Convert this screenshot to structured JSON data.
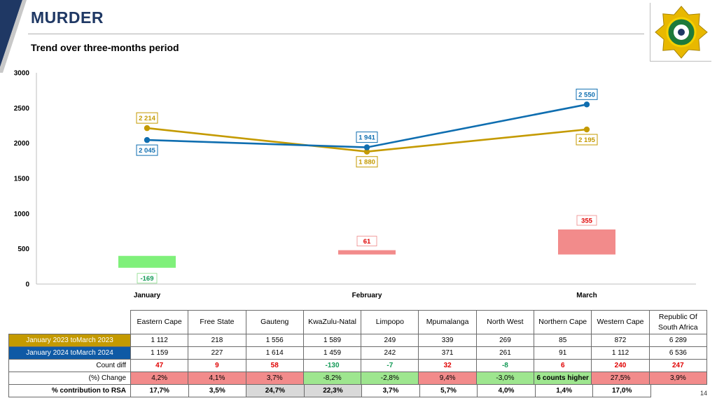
{
  "header": {
    "title": "MURDER",
    "subtitle": "Trend over three-months period"
  },
  "page_number": "14",
  "colors": {
    "series_2023": "#c49a00",
    "series_2024": "#0f6eb0",
    "diff_positive": "#f28b8b",
    "diff_negative": "#7ff07a"
  },
  "chart_data": {
    "type": "line",
    "title": "",
    "xlabel": "",
    "ylabel": "",
    "ylim": [
      0,
      3000
    ],
    "yticks": [
      0,
      500,
      1000,
      1500,
      2000,
      2500,
      3000
    ],
    "grid": false,
    "categories": [
      "January",
      "February",
      "March"
    ],
    "series": [
      {
        "name": "January 2023 toMarch 2023",
        "values": [
          2214,
          1880,
          2195
        ],
        "labels": [
          "2 214",
          "1 880",
          "2 195"
        ],
        "color": "#c49a00"
      },
      {
        "name": "January 2024 toMarch 2024",
        "values": [
          2045,
          1941,
          2550
        ],
        "labels": [
          "2 045",
          "1 941",
          "2 550"
        ],
        "color": "#0f6eb0"
      }
    ],
    "difference": {
      "values": [
        -169,
        61,
        355
      ],
      "labels": [
        "-169",
        "61",
        "355"
      ]
    }
  },
  "table": {
    "columns": [
      "Eastern Cape",
      "Free State",
      "Gauteng",
      "KwaZulu-Natal",
      "Limpopo",
      "Mpumalanga",
      "North West",
      "Northern Cape",
      "Western Cape",
      "Republic Of South Africa"
    ],
    "rows": [
      {
        "label": "January 2023 toMarch 2023",
        "values": [
          "1 112",
          "218",
          "1 556",
          "1 589",
          "249",
          "339",
          "269",
          "85",
          "872",
          "6 289"
        ]
      },
      {
        "label": "January 2024 toMarch 2024",
        "values": [
          "1 159",
          "227",
          "1 614",
          "1 459",
          "242",
          "371",
          "261",
          "91",
          "1 112",
          "6 536"
        ]
      }
    ],
    "count_diff": {
      "label": "Count diff",
      "values": [
        "47",
        "9",
        "58",
        "-130",
        "-7",
        "32",
        "-8",
        "6",
        "240",
        "247"
      ]
    },
    "pct_change": {
      "label": "(%) Change",
      "values": [
        "4,2%",
        "4,1%",
        "3,7%",
        "-8,2%",
        "-2,8%",
        "9,4%",
        "-3,0%",
        "6 counts higher",
        "27,5%",
        "3,9%"
      ]
    },
    "contribution": {
      "label": "% contribution to RSA",
      "values": [
        "17,7%",
        "3,5%",
        "24,7%",
        "22,3%",
        "3,7%",
        "5,7%",
        "4,0%",
        "1,4%",
        "17,0%"
      ]
    }
  }
}
